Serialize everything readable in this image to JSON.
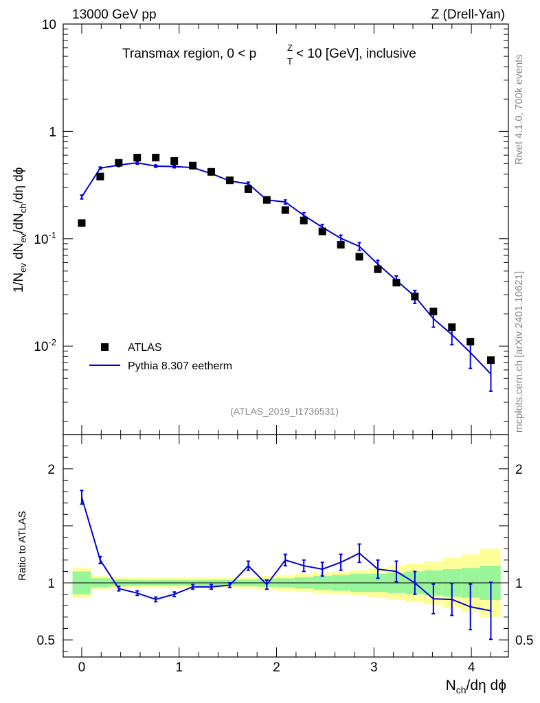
{
  "colors": {
    "data": "#000000",
    "mc": "#0000dd",
    "band_inner": "#99f59a",
    "band_outer": "#ffff99",
    "meta_text": "#888888",
    "axis": "#000000"
  },
  "header": {
    "left": "13000 GeV pp",
    "right": "Z (Drell-Yan)"
  },
  "side_labels": {
    "rivet": "Rivet 4.1.0,  700k events",
    "mcplots": "mcplots.cern.ch [arXiv:2401.10621]"
  },
  "chart_data": {
    "type": "scatter",
    "title": "Transmax region, 0 < p_T^Z < 10 [GeV], inclusive",
    "analysis_id": "(ATLAS_2019_I1736531)",
    "xlabel": "N_ch/dη dϕ",
    "ylabel": "1/N_ev dN_ev/dN_ch/dη dϕ",
    "ratio_ylabel": "Ratio to ATLAS",
    "xlim": [
      -0.19,
      4.38
    ],
    "ylim": [
      0.0015,
      10
    ],
    "yscale": "log",
    "ratio_ylim": [
      0.35,
      2.3
    ],
    "x_ticks": [
      "0",
      "1",
      "2",
      "3",
      "4"
    ],
    "y_ticks": [
      "10",
      "1",
      "10^-1",
      "10^-2"
    ],
    "ratio_y_ticks": [
      "2",
      "1",
      "0.5"
    ],
    "legend": {
      "placement": "bottom-left",
      "entries": [
        "ATLAS",
        "Pythia 8.307 eetherm"
      ]
    },
    "data_series": {
      "name": "ATLAS",
      "x": [
        0,
        0.19,
        0.38,
        0.57,
        0.76,
        0.95,
        1.14,
        1.33,
        1.52,
        1.71,
        1.9,
        2.09,
        2.28,
        2.47,
        2.66,
        2.85,
        3.04,
        3.23,
        3.42,
        3.61,
        3.8,
        3.99,
        4.2
      ],
      "y": [
        0.14,
        0.38,
        0.51,
        0.57,
        0.57,
        0.53,
        0.48,
        0.42,
        0.35,
        0.29,
        0.23,
        0.185,
        0.148,
        0.117,
        0.088,
        0.068,
        0.052,
        0.039,
        0.029,
        0.021,
        0.015,
        0.011,
        0.0074
      ]
    },
    "mc_series": {
      "name": "Pythia 8.307 eetherm",
      "x": [
        0,
        0.19,
        0.38,
        0.57,
        0.76,
        0.95,
        1.14,
        1.33,
        1.52,
        1.71,
        1.9,
        2.09,
        2.28,
        2.47,
        2.66,
        2.85,
        3.04,
        3.23,
        3.42,
        3.61,
        3.8,
        3.99,
        4.2
      ],
      "y": [
        0.245,
        0.455,
        0.485,
        0.51,
        0.475,
        0.47,
        0.46,
        0.405,
        0.345,
        0.325,
        0.23,
        0.22,
        0.165,
        0.128,
        0.101,
        0.085,
        0.058,
        0.041,
        0.029,
        0.018,
        0.0128,
        0.0087,
        0.0055
      ],
      "yerr": [
        0.01,
        0.01,
        0.015,
        0.015,
        0.012,
        0.012,
        0.012,
        0.012,
        0.012,
        0.012,
        0.01,
        0.01,
        0.01,
        0.008,
        0.007,
        0.007,
        0.005,
        0.004,
        0.004,
        0.003,
        0.0025,
        0.0025,
        0.0017
      ]
    },
    "ratio_series": {
      "name": "Pythia 8.307 eetherm / ATLAS",
      "x": [
        0,
        0.19,
        0.38,
        0.57,
        0.76,
        0.95,
        1.14,
        1.33,
        1.52,
        1.71,
        1.9,
        2.09,
        2.28,
        2.47,
        2.66,
        2.85,
        3.04,
        3.23,
        3.42,
        3.61,
        3.8,
        3.99,
        4.2
      ],
      "y": [
        1.75,
        1.2,
        0.95,
        0.91,
        0.855,
        0.9,
        0.965,
        0.965,
        0.98,
        1.15,
        0.985,
        1.2,
        1.15,
        1.12,
        1.18,
        1.26,
        1.12,
        1.1,
        1.0,
        0.86,
        0.855,
        0.79,
        0.755
      ],
      "yerr": [
        0.06,
        0.03,
        0.02,
        0.02,
        0.02,
        0.02,
        0.02,
        0.02,
        0.02,
        0.04,
        0.04,
        0.05,
        0.05,
        0.06,
        0.07,
        0.08,
        0.08,
        0.09,
        0.1,
        0.13,
        0.14,
        0.2,
        0.25
      ]
    },
    "uncertainty_bands": {
      "x_edges": [
        -0.095,
        0.095,
        0.285,
        0.475,
        0.665,
        0.855,
        1.045,
        1.235,
        1.425,
        1.615,
        1.805,
        1.995,
        2.185,
        2.375,
        2.565,
        2.755,
        2.945,
        3.135,
        3.325,
        3.515,
        3.705,
        3.895,
        4.085,
        4.3
      ],
      "inner": [
        0.1,
        0.04,
        0.03,
        0.025,
        0.025,
        0.025,
        0.025,
        0.025,
        0.025,
        0.03,
        0.035,
        0.04,
        0.05,
        0.06,
        0.07,
        0.08,
        0.08,
        0.09,
        0.1,
        0.11,
        0.12,
        0.13,
        0.15
      ],
      "outer": [
        0.13,
        0.06,
        0.05,
        0.045,
        0.045,
        0.045,
        0.045,
        0.045,
        0.045,
        0.05,
        0.06,
        0.07,
        0.08,
        0.09,
        0.1,
        0.11,
        0.13,
        0.15,
        0.17,
        0.19,
        0.22,
        0.25,
        0.3
      ]
    }
  }
}
